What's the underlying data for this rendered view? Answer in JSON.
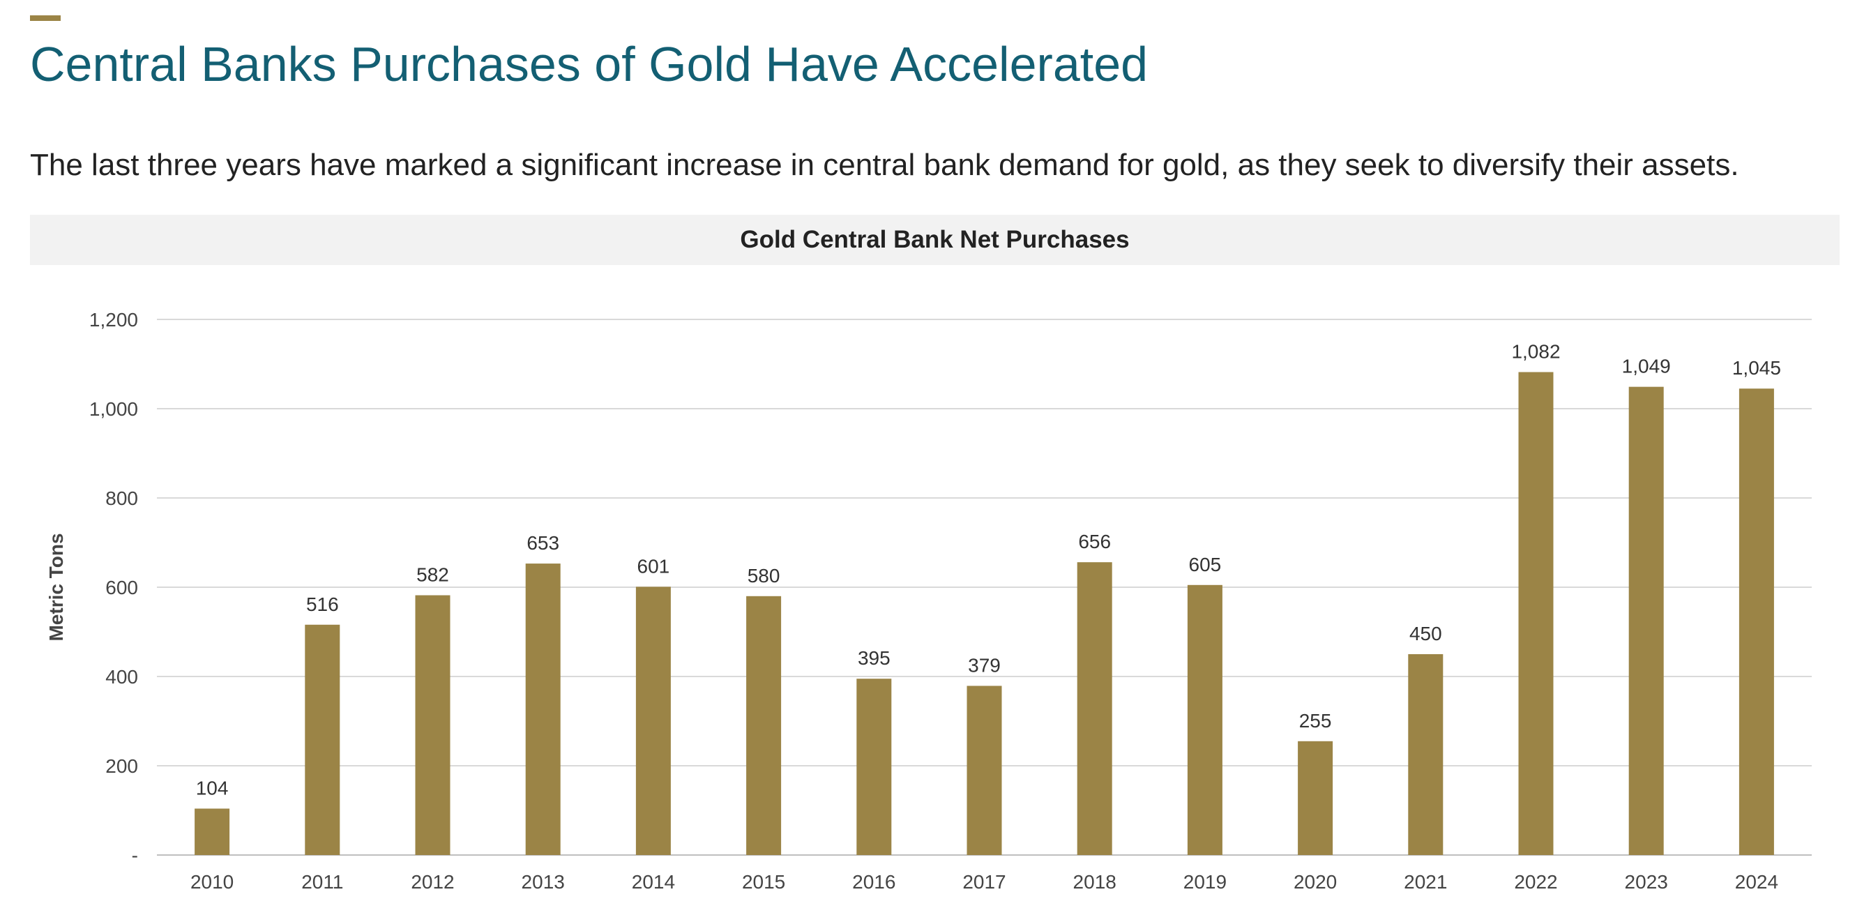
{
  "header": {
    "title": "Central Banks Purchases of Gold Have Accelerated",
    "subtitle": "The last three years have marked a significant increase in central bank demand for gold, as they seek to diversify their assets."
  },
  "colors": {
    "accent": "#9b8446",
    "title": "#135f73",
    "bar": "#9b8446"
  },
  "chart_data": {
    "type": "bar",
    "title": "Gold Central Bank Net Purchases",
    "xlabel": "",
    "ylabel": "Metric Tons",
    "ylim": [
      0,
      1200
    ],
    "yticks": [
      0,
      200,
      400,
      600,
      800,
      1000,
      1200
    ],
    "ytick_labels": [
      "-",
      "200",
      "400",
      "600",
      "800",
      "1,000",
      "1,200"
    ],
    "grid": true,
    "categories": [
      "2010",
      "2011",
      "2012",
      "2013",
      "2014",
      "2015",
      "2016",
      "2017",
      "2018",
      "2019",
      "2020",
      "2021",
      "2022",
      "2023",
      "2024"
    ],
    "values": [
      104,
      516,
      582,
      653,
      601,
      580,
      395,
      379,
      656,
      605,
      255,
      450,
      1082,
      1049,
      1045
    ],
    "value_labels": [
      "104",
      "516",
      "582",
      "653",
      "601",
      "580",
      "395",
      "379",
      "656",
      "605",
      "255",
      "450",
      "1,082",
      "1,049",
      "1,045"
    ]
  }
}
